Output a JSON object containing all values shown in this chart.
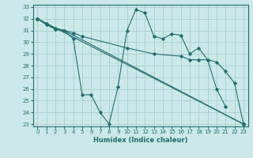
{
  "title": "",
  "xlabel": "Humidex (Indice chaleur)",
  "bg_color": "#cce8e8",
  "grid_color": "#aacccc",
  "line_color": "#1a7070",
  "xlim": [
    -0.5,
    23.5
  ],
  "ylim": [
    22.8,
    33.2
  ],
  "xticks": [
    0,
    1,
    2,
    3,
    4,
    5,
    6,
    7,
    8,
    9,
    10,
    11,
    12,
    13,
    14,
    15,
    16,
    17,
    18,
    19,
    20,
    21,
    22,
    23
  ],
  "yticks": [
    23,
    24,
    25,
    26,
    27,
    28,
    29,
    30,
    31,
    32,
    33
  ],
  "series": [
    {
      "x": [
        0,
        1,
        2,
        3,
        4,
        5,
        6,
        7,
        8,
        9,
        10,
        11,
        12,
        13,
        14,
        15,
        16,
        17,
        18,
        19,
        20,
        21
      ],
      "y": [
        32,
        31.6,
        31.1,
        31.0,
        30.3,
        25.5,
        25.5,
        24.0,
        23.0,
        26.2,
        31.0,
        32.8,
        32.5,
        30.5,
        30.3,
        30.7,
        30.6,
        29.0,
        29.5,
        28.5,
        26.0,
        24.5
      ]
    },
    {
      "x": [
        0,
        23
      ],
      "y": [
        32,
        23.0
      ]
    },
    {
      "x": [
        0,
        1,
        2,
        3,
        4,
        5,
        10,
        13,
        16,
        17,
        18,
        19,
        20,
        21,
        22,
        23
      ],
      "y": [
        32,
        31.6,
        31.2,
        31.0,
        30.8,
        30.5,
        29.5,
        29.0,
        28.8,
        28.5,
        28.5,
        28.5,
        28.3,
        27.5,
        26.5,
        23.0
      ]
    },
    {
      "x": [
        0,
        1,
        2,
        3,
        23
      ],
      "y": [
        32,
        31.5,
        31.1,
        31.0,
        23.0
      ]
    }
  ]
}
